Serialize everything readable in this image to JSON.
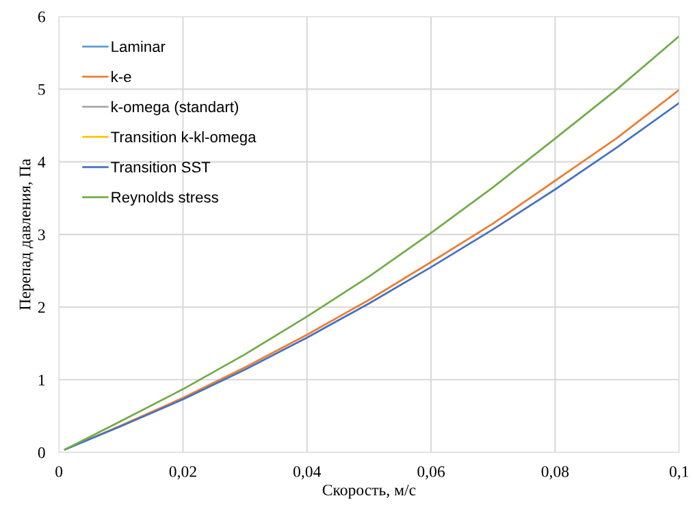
{
  "chart_data": {
    "type": "line",
    "xlabel": "Скорость, м/с",
    "ylabel": "Перепад давления, Па",
    "x": [
      0.001,
      0.01,
      0.02,
      0.03,
      0.04,
      0.05,
      0.06,
      0.07,
      0.08,
      0.09,
      0.1
    ],
    "series": [
      {
        "name": "Laminar",
        "color": "#5b9bd5",
        "values": [
          null,
          null,
          null,
          null,
          null,
          null,
          null,
          null,
          null,
          null,
          null
        ]
      },
      {
        "name": "k-e",
        "color": "#ed7d31",
        "values": [
          0.04,
          0.37,
          0.75,
          1.17,
          1.62,
          2.1,
          2.62,
          3.15,
          3.74,
          4.33,
          4.99
        ]
      },
      {
        "name": "k-omega (standart)",
        "color": "#a5a5a5",
        "values": [
          null,
          null,
          null,
          null,
          null,
          null,
          null,
          null,
          null,
          null,
          null
        ]
      },
      {
        "name": "Transition k-kl-omega",
        "color": "#ffc000",
        "values": [
          null,
          null,
          null,
          null,
          null,
          null,
          null,
          null,
          null,
          null,
          null
        ]
      },
      {
        "name": "Transition SST",
        "color": "#4472c4",
        "values": [
          0.04,
          0.36,
          0.73,
          1.14,
          1.58,
          2.05,
          2.55,
          3.07,
          3.62,
          4.2,
          4.81
        ]
      },
      {
        "name": "Reynolds stress",
        "color": "#70ad47",
        "values": [
          0.04,
          0.43,
          0.87,
          1.35,
          1.87,
          2.42,
          3.02,
          3.65,
          4.32,
          5.0,
          5.73
        ]
      }
    ],
    "xlim": [
      0,
      0.1
    ],
    "ylim": [
      0,
      6
    ],
    "xticks": [
      0,
      {
        "value": 0.02,
        "label": "0,02"
      },
      {
        "value": 0.04,
        "label": "0,04"
      },
      {
        "value": 0.06,
        "label": "0,06"
      },
      {
        "value": 0.08,
        "label": "0,08"
      },
      {
        "value": 0.1,
        "label": "0,1"
      }
    ],
    "yticks": [
      0,
      1,
      2,
      3,
      4,
      5,
      6
    ],
    "grid": true,
    "legend": "top left",
    "marker": "none",
    "line_style": "solid"
  }
}
